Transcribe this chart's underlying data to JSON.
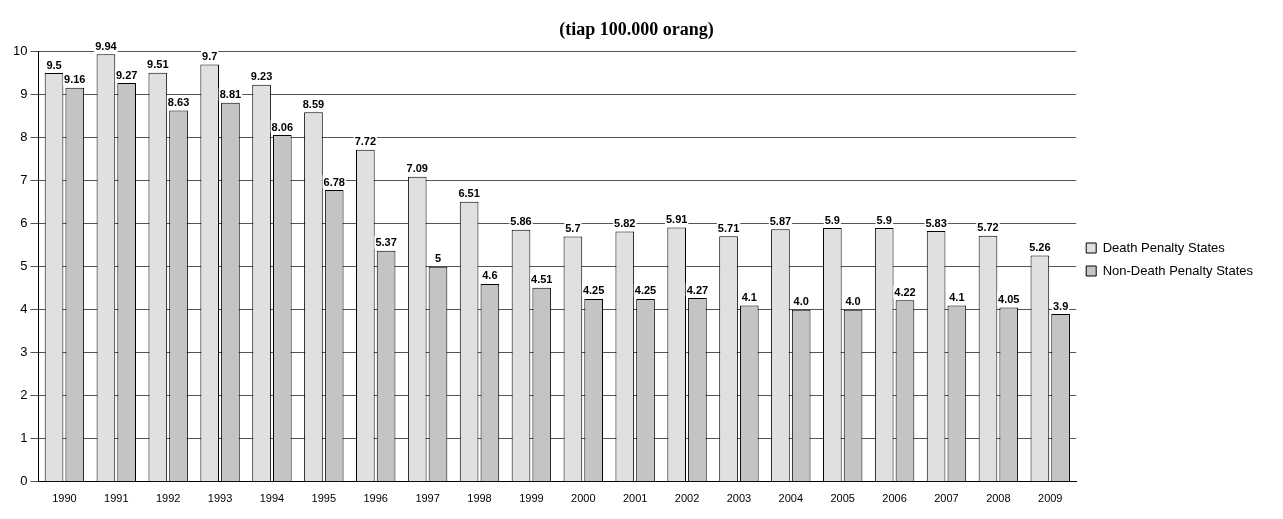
{
  "chart_data": {
    "type": "bar",
    "title": "(tiap 100.000 orang)",
    "categories": [
      "1990",
      "1991",
      "1992",
      "1993",
      "1994",
      "1995",
      "1996",
      "1997",
      "1998",
      "1999",
      "2000",
      "2001",
      "2002",
      "2003",
      "2004",
      "2005",
      "2006",
      "2007",
      "2008",
      "2009"
    ],
    "series": [
      {
        "name": "Death Penalty States",
        "color": "#e0e0e0",
        "values": [
          9.5,
          9.94,
          9.51,
          9.7,
          9.23,
          8.59,
          7.72,
          7.09,
          6.51,
          5.86,
          5.7,
          5.82,
          5.91,
          5.71,
          5.87,
          5.9,
          5.9,
          5.83,
          5.72,
          5.26
        ],
        "value_labels": [
          "9.5",
          "9.94",
          "9.51",
          "9.7",
          "9.23",
          "8.59",
          "7.72",
          "7.09",
          "6.51",
          "5.86",
          "5.7",
          "5.82",
          "5.91",
          "5.71",
          "5.87",
          "5.9",
          "5.9",
          "5.83",
          "5.72",
          "5.26"
        ]
      },
      {
        "name": "Non-Death Penalty States",
        "color": "#c4c4c4",
        "values": [
          9.16,
          9.27,
          8.63,
          8.81,
          8.06,
          6.78,
          5.37,
          5,
          4.6,
          4.51,
          4.25,
          4.25,
          4.27,
          4.1,
          4.0,
          4.0,
          4.22,
          4.1,
          4.05,
          3.9
        ],
        "value_labels": [
          "9.16",
          "9.27",
          "8.63",
          "8.81",
          "8.06",
          "6.78",
          "5.37",
          "5",
          "4.6",
          "4.51",
          "4.25",
          "4.25",
          "4.27",
          "4.1",
          "4.0",
          "4.0",
          "4.22",
          "4.1",
          "4.05",
          "3.9"
        ]
      }
    ],
    "ylim": [
      0,
      10
    ],
    "yticks": [
      0,
      1,
      2,
      3,
      4,
      5,
      6,
      7,
      8,
      9,
      10
    ],
    "grid": "y",
    "legend": "right"
  }
}
